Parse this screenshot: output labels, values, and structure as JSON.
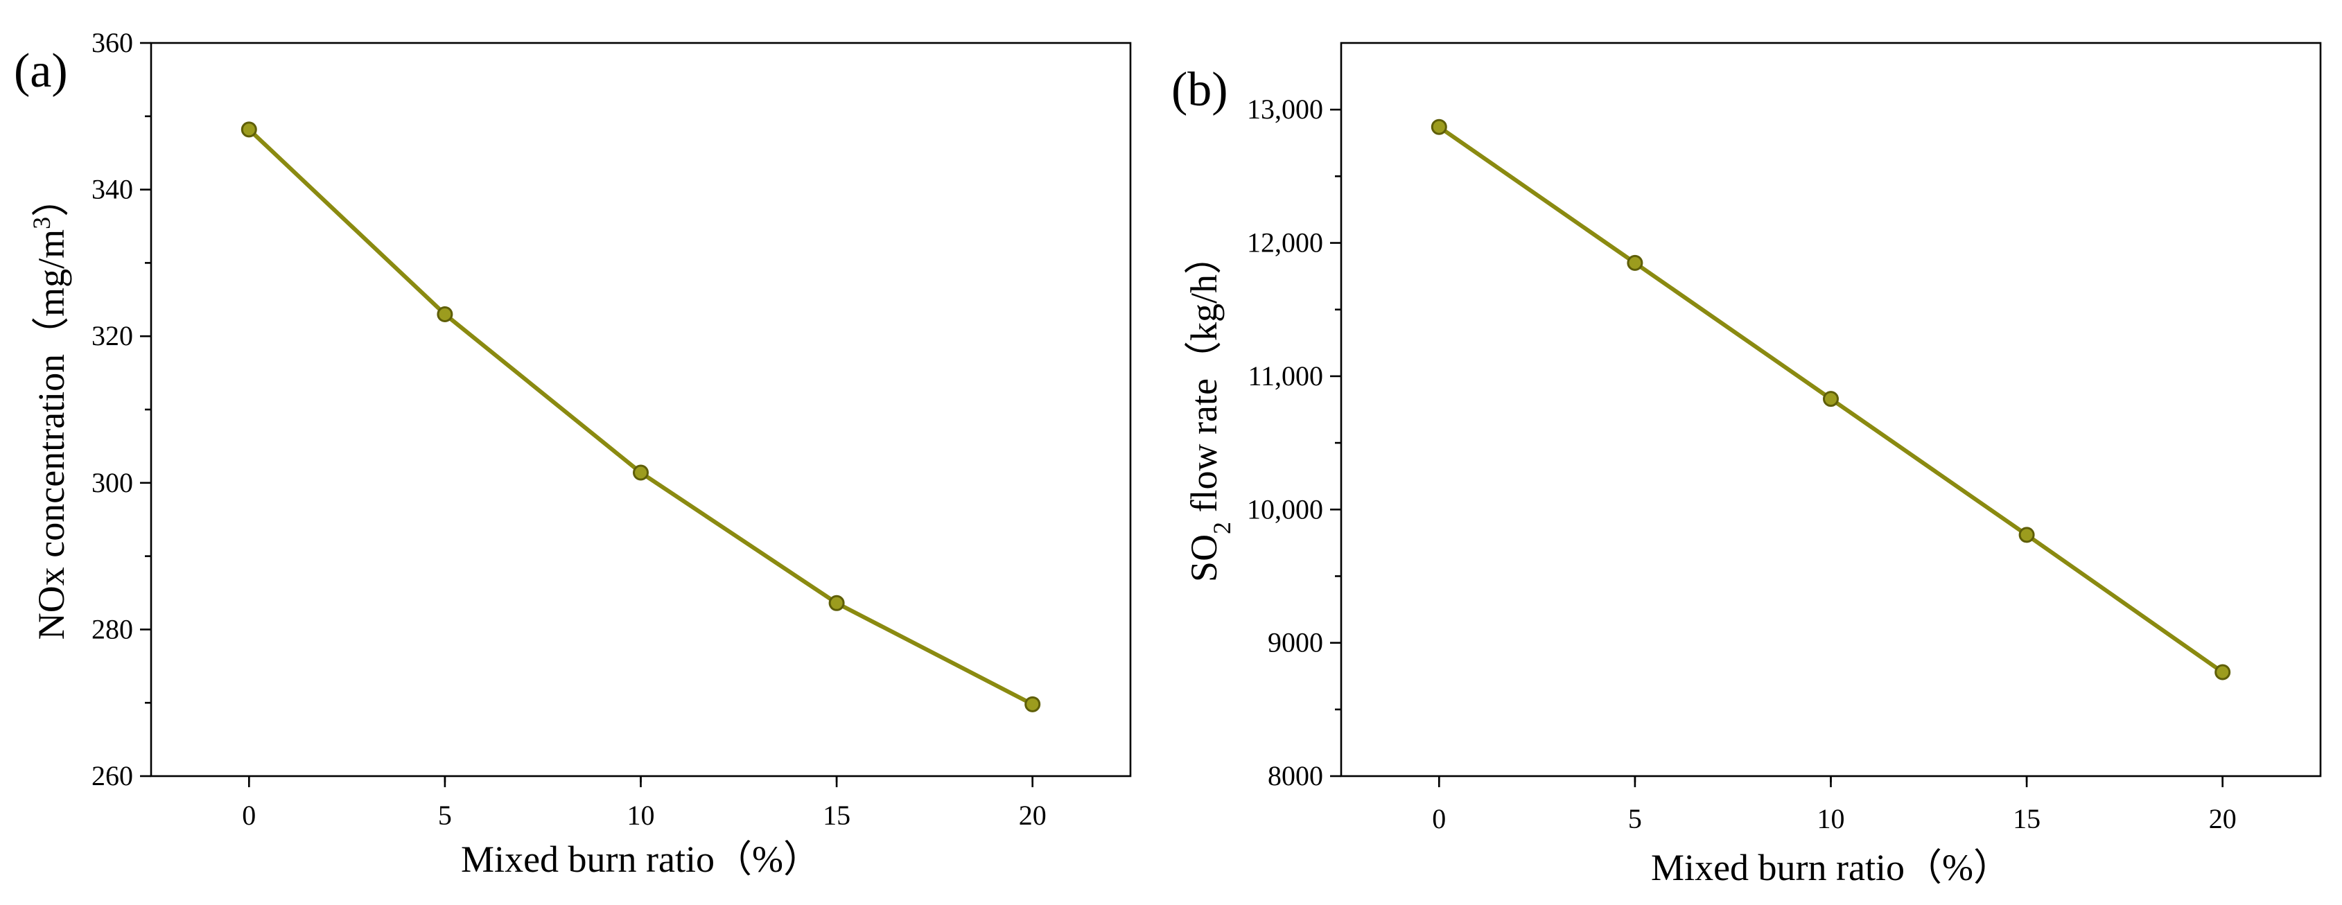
{
  "colors": {
    "series": "#8a8a10",
    "marker_fill": "#9c9c1e",
    "marker_stroke": "#5e5e08"
  },
  "chart_data": [
    {
      "type": "line",
      "panel_label": "(a)",
      "title": "",
      "xlabel": "Mixed burn ratio（%）",
      "ylabel": "NOx concentration（mg/m",
      "ylabel_sup": "3",
      "ylabel_close": "）",
      "xlim": [
        -2.5,
        22.5
      ],
      "ylim": [
        260,
        360
      ],
      "xticks": [
        0,
        5,
        10,
        15,
        20
      ],
      "xtick_labels": [
        "0",
        "5",
        "10",
        "15",
        "20"
      ],
      "yticks": [
        260,
        280,
        300,
        320,
        340,
        360
      ],
      "ytick_labels": [
        "260",
        "280",
        "300",
        "320",
        "340",
        "360"
      ],
      "x_minor_step": 2.5,
      "y_minor_step": 10,
      "series": [
        {
          "name": "NOx",
          "x": [
            0,
            5,
            10,
            15,
            20
          ],
          "values": [
            348.2,
            323.0,
            301.4,
            283.6,
            269.8
          ]
        }
      ]
    },
    {
      "type": "line",
      "panel_label": "(b)",
      "title": "",
      "xlabel": "Mixed burn ratio（%）",
      "ylabel_prefix": "SO",
      "ylabel_sub": "2",
      "ylabel_suffix": " flow rate（kg/h）",
      "xlim": [
        -2.5,
        22.5
      ],
      "ylim": [
        8000,
        13500
      ],
      "xticks": [
        0,
        5,
        10,
        15,
        20
      ],
      "xtick_labels": [
        "0",
        "5",
        "10",
        "15",
        "20"
      ],
      "yticks": [
        8000,
        9000,
        10000,
        11000,
        12000,
        13000
      ],
      "ytick_labels": [
        "8000",
        "9000",
        "10,000",
        "11,000",
        "12,000",
        "13,000"
      ],
      "x_minor_step": 2.5,
      "y_minor_step": 500,
      "series": [
        {
          "name": "SO2",
          "x": [
            0,
            5,
            10,
            15,
            20
          ],
          "values": [
            12870,
            11850,
            10830,
            9810,
            8780
          ]
        }
      ]
    }
  ]
}
